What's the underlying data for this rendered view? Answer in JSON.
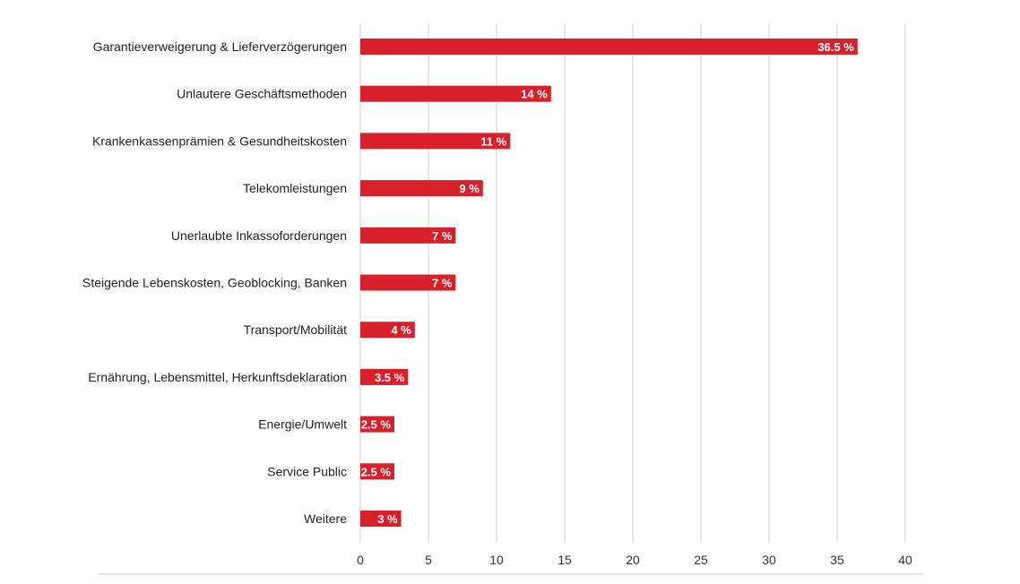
{
  "chart_data": {
    "type": "bar",
    "orientation": "horizontal",
    "categories": [
      "Garantieverweigerung & Lieferverzögerungen",
      "Unlautere Geschäftsmethoden",
      "Krankenkassenprämien & Gesundheitskosten",
      "Telekomleistungen",
      "Unerlaubte Inkassoforderungen",
      "Steigende Lebenskosten, Geoblocking, Banken",
      "Transport/Mobilität",
      "Ernährung, Lebensmittel, Herkunftsdeklaration",
      "Energie/Umwelt",
      "Service Public",
      "Weitere"
    ],
    "values": [
      36.5,
      14,
      11,
      9,
      7,
      7,
      4,
      3.5,
      2.5,
      2.5,
      3
    ],
    "data_labels": [
      "36.5 %",
      "14 %",
      "11 %",
      "9 %",
      "7 %",
      "7 %",
      "4 %",
      "3.5 %",
      "2.5 %",
      "2.5 %",
      "3 %"
    ],
    "title": "",
    "xlabel": "",
    "ylabel": "",
    "xlim": [
      0,
      40
    ],
    "x_ticks": [
      0,
      5,
      10,
      15,
      20,
      25,
      30,
      35,
      40
    ],
    "grid": true,
    "legend": "none",
    "bar_color": "#d7202a"
  }
}
